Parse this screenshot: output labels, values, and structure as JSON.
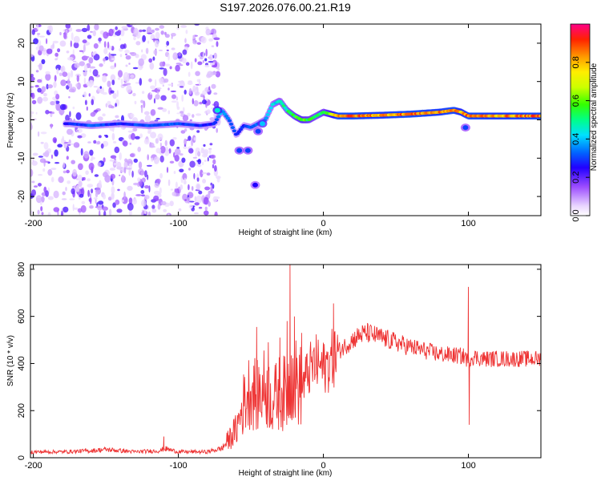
{
  "chart_data": [
    {
      "type": "heatmap",
      "title": "S197.2026.076.00.21.R19",
      "xlabel": "Height of straight line (km)",
      "ylabel": "Frequency (Hz)",
      "xlim": [
        -202,
        150
      ],
      "ylim": [
        -25,
        25
      ],
      "x_ticks": [
        -200,
        -100,
        0,
        100
      ],
      "y_ticks": [
        -20,
        -10,
        0,
        10,
        20
      ],
      "colorbar": {
        "label": "Normalized spectral amplitude",
        "ticks": [
          0.0,
          0.2,
          0.4,
          0.6,
          0.8
        ],
        "tick_labels": [
          "0.0",
          "0.2",
          "0.4",
          "0.6",
          "0.8"
        ],
        "range": [
          0,
          1
        ]
      },
      "ridge": {
        "x": [
          -175,
          -160,
          -140,
          -120,
          -100,
          -85,
          -75,
          -70,
          -65,
          -60,
          -55,
          -50,
          -45,
          -40,
          -35,
          -30,
          -25,
          -20,
          -15,
          -10,
          -5,
          0,
          5,
          10,
          20,
          40,
          60,
          80,
          90,
          95,
          100,
          120,
          150
        ],
        "freq": [
          -1,
          -1.5,
          -1,
          -1.5,
          -1,
          -1.5,
          -1,
          2.5,
          0,
          -4,
          -1.5,
          -2,
          -1,
          0,
          4,
          5,
          2.5,
          1,
          0,
          0,
          1,
          2,
          1.5,
          1,
          1,
          1.2,
          1.5,
          2,
          2.5,
          2,
          1,
          1,
          1
        ],
        "amp": [
          0.3,
          0.35,
          0.3,
          0.35,
          0.35,
          0.3,
          0.3,
          0.45,
          0.35,
          0.3,
          0.3,
          0.35,
          0.35,
          0.4,
          0.45,
          0.5,
          0.55,
          0.6,
          0.65,
          0.6,
          0.55,
          0.6,
          0.7,
          0.95,
          0.95,
          0.9,
          0.95,
          0.9,
          0.95,
          0.85,
          0.95,
          0.9,
          0.95
        ]
      },
      "blobs": [
        {
          "x": -73,
          "f": 2.5,
          "amp": 0.45
        },
        {
          "x": -58,
          "f": -8,
          "amp": 0.3
        },
        {
          "x": -52,
          "f": -8,
          "amp": 0.3
        },
        {
          "x": -47,
          "f": -17,
          "amp": 0.25
        },
        {
          "x": -45,
          "f": -3,
          "amp": 0.3
        },
        {
          "x": -42,
          "f": -1,
          "amp": 0.4
        },
        {
          "x": 98,
          "f": -2,
          "amp": 0.3
        }
      ]
    },
    {
      "type": "line",
      "xlabel": "Height of straight line (km)",
      "ylabel": "SNR (10 * v/v)",
      "xlim": [
        -202,
        150
      ],
      "ylim": [
        0,
        820
      ],
      "x_ticks": [
        -200,
        -100,
        0,
        100
      ],
      "y_ticks": [
        0,
        200,
        400,
        600,
        800
      ],
      "color": "#ee3333",
      "envelope": {
        "x": [
          -202,
          -180,
          -160,
          -150,
          -130,
          -112,
          -110,
          -100,
          -80,
          -70,
          -60,
          -55,
          -50,
          -46,
          -40,
          -35,
          -30,
          -25,
          -22,
          -20,
          -15,
          -10,
          -5,
          0,
          5,
          10,
          20,
          25,
          30,
          40,
          60,
          80,
          98,
          100,
          102,
          110,
          130,
          150
        ],
        "y": [
          25,
          25,
          30,
          35,
          25,
          30,
          40,
          25,
          25,
          40,
          120,
          230,
          300,
          260,
          300,
          240,
          280,
          270,
          380,
          330,
          300,
          370,
          400,
          380,
          410,
          450,
          500,
          520,
          530,
          510,
          470,
          440,
          430,
          400,
          430,
          420,
          420,
          420
        ]
      },
      "spikes": [
        {
          "x": -110,
          "y": 90
        },
        {
          "x": -46,
          "y": 555
        },
        {
          "x": -38,
          "y": 490
        },
        {
          "x": -30,
          "y": 510
        },
        {
          "x": -25,
          "y": 580
        },
        {
          "x": -23,
          "y": 820
        },
        {
          "x": -20,
          "y": 600
        },
        {
          "x": -15,
          "y": 530
        },
        {
          "x": 7,
          "y": 655
        },
        {
          "x": 100,
          "y": 725
        },
        {
          "x": 100.6,
          "y": 140
        }
      ]
    }
  ]
}
